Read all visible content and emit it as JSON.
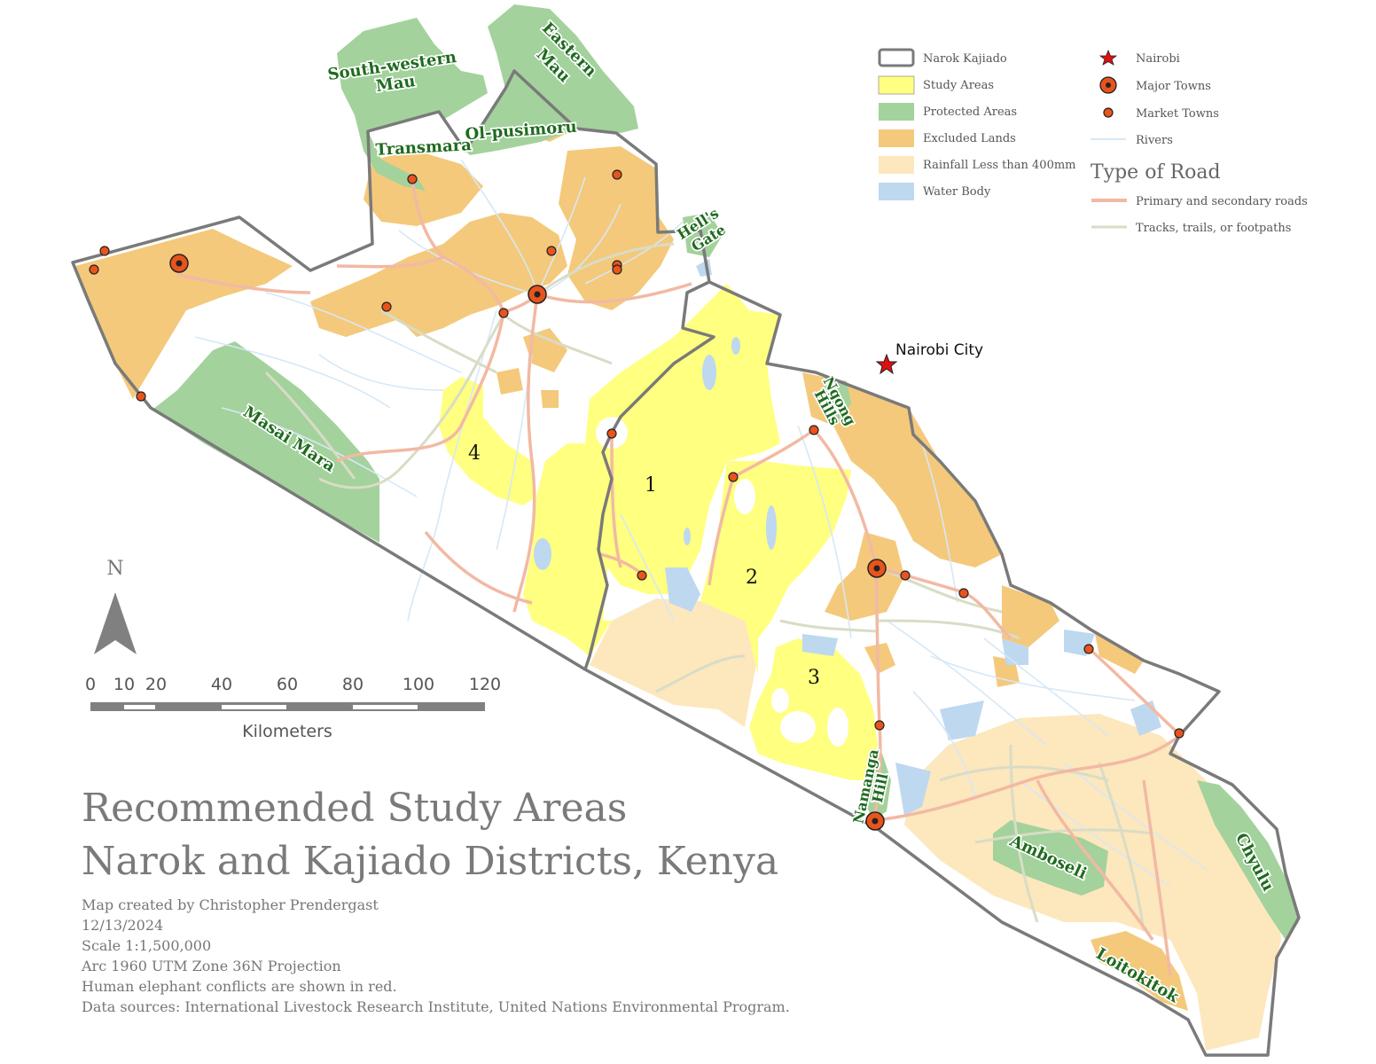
{
  "title": {
    "line1": "Recommended Study Areas",
    "line2": "Narok and Kajiado Districts, Kenya"
  },
  "metadata": [
    "Map created by Christopher Prendergast",
    "12/13/2024",
    "Scale 1:1,500,000",
    "Arc 1960 UTM Zone 36N Projection",
    "Human elephant conflicts are shown in red.",
    "Data sources: International Livestock Research Institute, United Nations Environmental Program."
  ],
  "legend": {
    "items_left": [
      {
        "label": "Narok Kajiado",
        "symbol": "boundary"
      },
      {
        "label": "Study Areas",
        "color": "#ffff80"
      },
      {
        "label": "Protected Areas",
        "color": "#a3d29c"
      },
      {
        "label": "Excluded Lands",
        "color": "#f4c97b"
      },
      {
        "label": "Rainfall Less than 400mm",
        "color": "#fde7bd"
      },
      {
        "label": "Water Body",
        "color": "#bed8ef"
      }
    ],
    "items_right": [
      {
        "label": "Nairobi",
        "symbol": "star-icon"
      },
      {
        "label": "Major Towns",
        "symbol": "ring-dot-icon"
      },
      {
        "label": "Market Towns",
        "symbol": "dot-icon"
      },
      {
        "label": "Rivers",
        "symbol": "line",
        "color": "#d6e8f7"
      }
    ],
    "road_heading": "Type of Road",
    "roads": [
      {
        "label": "Primary and secondary roads",
        "color": "#f2b9a3"
      },
      {
        "label": "Tracks, trails, or footpaths",
        "color": "#d9dcc6"
      }
    ]
  },
  "north_arrow": {
    "label": "N"
  },
  "scale_bar": {
    "ticks": [
      "0",
      "10",
      "20",
      "40",
      "60",
      "80",
      "100",
      "120"
    ],
    "unit": "Kilometers"
  },
  "place_labels": {
    "south_western_mau_1": "South-western",
    "south_western_mau_2": "Mau",
    "eastern_mau_1": "Eastern",
    "eastern_mau_2": "Mau",
    "transmara": "Transmara",
    "ol_pusimoru": "Ol-pusimoru",
    "hells_gate_1": "Hell's",
    "hells_gate_2": "Gate",
    "masai_mara": "Masai Mara",
    "ngong_1": "Ngong",
    "ngong_2": "Hills",
    "namanga_1": "Namanga",
    "namanga_2": "Hill",
    "amboseli": "Amboseli",
    "chyulu": "Chyulu",
    "loitokitok": "Loitokitok",
    "nairobi_city": "Nairobi City"
  },
  "study_areas": [
    "1",
    "2",
    "3",
    "4"
  ],
  "colors": {
    "boundary": "#7a7a7a",
    "study": "#ffff80",
    "protected": "#a3d29c",
    "excluded": "#f4c97b",
    "rainfall": "#fde7bd",
    "water": "#bed8ef",
    "town": "#e8541c",
    "star": "#e01010"
  }
}
